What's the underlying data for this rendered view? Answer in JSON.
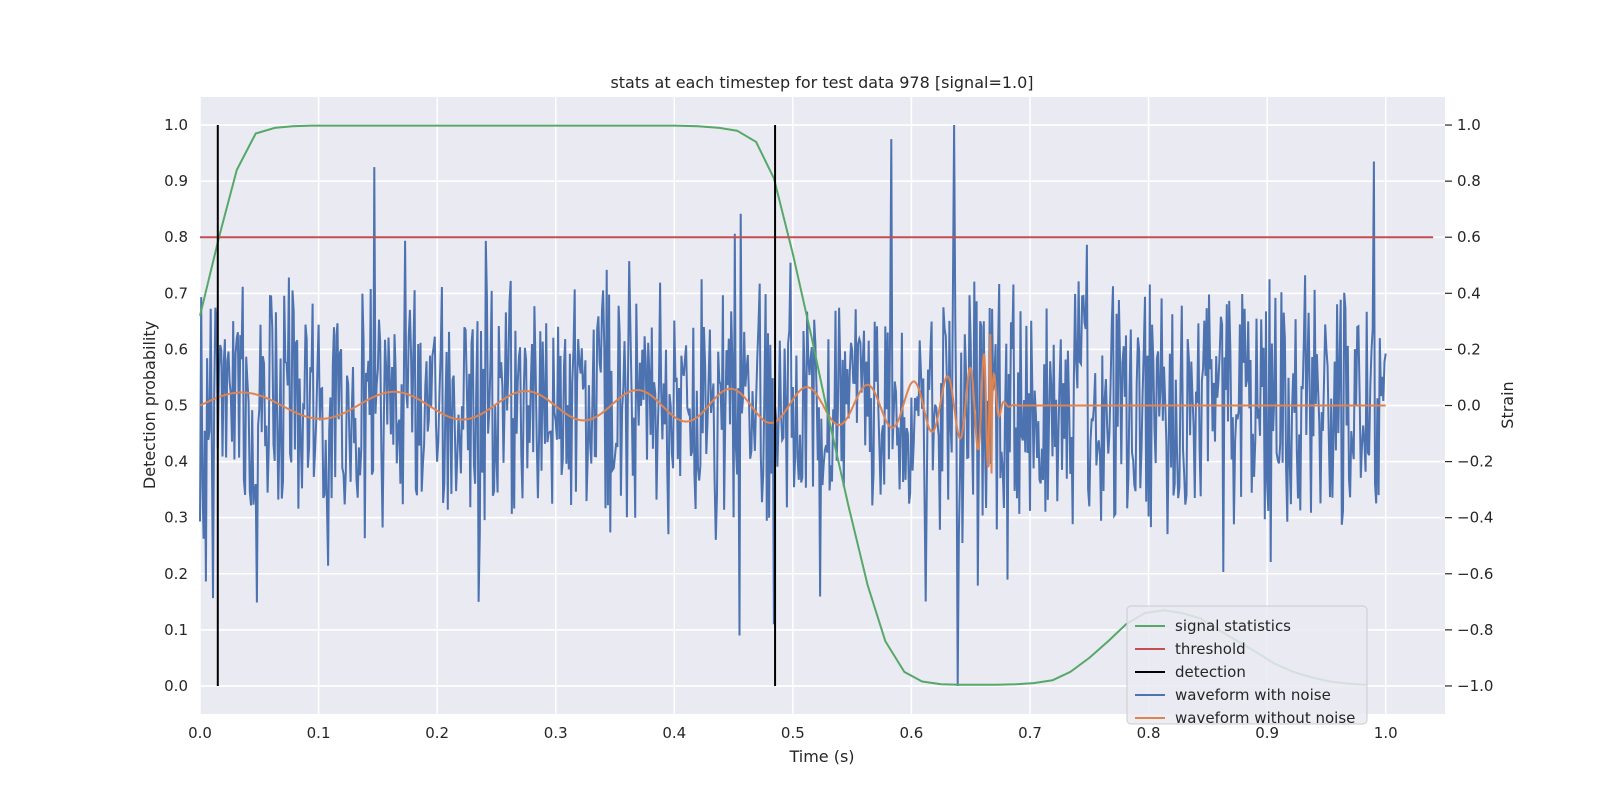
{
  "chart_data": {
    "type": "line",
    "title": "stats at each timestep for test data 978 [signal=1.0]",
    "xlabel": "Time (s)",
    "ylabel": "Detection probability",
    "y2label": "Strain",
    "xlim": [
      0.0,
      1.05
    ],
    "ylim": [
      -0.05,
      1.05
    ],
    "y2lim": [
      -1.1,
      1.1
    ],
    "xticks": [
      "0.0",
      "0.1",
      "0.2",
      "0.3",
      "0.4",
      "0.5",
      "0.6",
      "0.7",
      "0.8",
      "0.9",
      "1.0"
    ],
    "yticks": [
      "0.0",
      "0.1",
      "0.2",
      "0.3",
      "0.4",
      "0.5",
      "0.6",
      "0.7",
      "0.8",
      "0.9",
      "1.0"
    ],
    "y2ticks": [
      "−1.0",
      "−0.8",
      "−0.6",
      "−0.4",
      "−0.2",
      "0.0",
      "0.2",
      "0.4",
      "0.6",
      "0.8",
      "1.0"
    ],
    "grid": true,
    "legend_position": "bottom-right",
    "colors": {
      "background": "#eaeaf2",
      "signal": "#55a868",
      "threshold": "#c44e52",
      "detection": "#000000",
      "noisy": "#4c72b0",
      "clean": "#dd8452"
    },
    "series": [
      {
        "name": "signal statistics",
        "axis": "left",
        "x": [
          0.0,
          0.016,
          0.031,
          0.047,
          0.063,
          0.078,
          0.094,
          0.11,
          0.2,
          0.3,
          0.4,
          0.42,
          0.438,
          0.453,
          0.469,
          0.484,
          0.5,
          0.516,
          0.531,
          0.547,
          0.563,
          0.578,
          0.594,
          0.609,
          0.625,
          0.641,
          0.656,
          0.672,
          0.688,
          0.703,
          0.719,
          0.734,
          0.75,
          0.766,
          0.781,
          0.797,
          0.813,
          0.828,
          0.844,
          0.859,
          0.875,
          0.891,
          0.906,
          0.922,
          0.938,
          0.953,
          0.969,
          0.984
        ],
        "y": [
          0.66,
          0.8,
          0.92,
          0.985,
          0.995,
          0.998,
          0.999,
          0.999,
          0.999,
          0.999,
          0.999,
          0.998,
          0.995,
          0.99,
          0.97,
          0.905,
          0.77,
          0.62,
          0.47,
          0.32,
          0.18,
          0.08,
          0.025,
          0.008,
          0.003,
          0.002,
          0.002,
          0.002,
          0.003,
          0.005,
          0.01,
          0.025,
          0.05,
          0.08,
          0.11,
          0.13,
          0.135,
          0.13,
          0.12,
          0.1,
          0.08,
          0.06,
          0.04,
          0.025,
          0.015,
          0.008,
          0.004,
          0.002
        ]
      },
      {
        "name": "threshold",
        "axis": "left",
        "x": [
          0.0,
          1.04
        ],
        "y": [
          0.8,
          0.8
        ]
      },
      {
        "name": "detection",
        "axis": "left",
        "x": [
          0.015,
          0.485
        ],
        "y": [
          0.0,
          1.0
        ]
      },
      {
        "name": "waveform with noise",
        "axis": "right",
        "description": "strain with noise, samples roughly uniform in [-0.5, 0.5] with spikes to about ±1.0",
        "x_range": [
          0.0,
          1.0
        ],
        "amplitude_typical": 0.5,
        "spikes": [
          {
            "x": 0.147,
            "y": 0.85
          },
          {
            "x": 0.583,
            "y": 0.95
          },
          {
            "x": 0.636,
            "y": 1.0
          },
          {
            "x": 0.639,
            "y": -1.0
          },
          {
            "x": 0.99,
            "y": 0.87
          },
          {
            "x": 0.484,
            "y": -0.78
          },
          {
            "x": 0.455,
            "y": -0.82
          }
        ]
      },
      {
        "name": "waveform without noise",
        "axis": "right",
        "description": "chirp: oscillation with increasing frequency and amplitude, merger near t=0.67 s, then 0",
        "x_range": [
          0.0,
          1.0
        ],
        "amplitude_start": 0.03,
        "amplitude_peak": 0.3,
        "merger_time": 0.668
      }
    ],
    "legend": [
      "signal statistics",
      "threshold",
      "detection",
      "waveform with noise",
      "waveform without noise"
    ]
  }
}
